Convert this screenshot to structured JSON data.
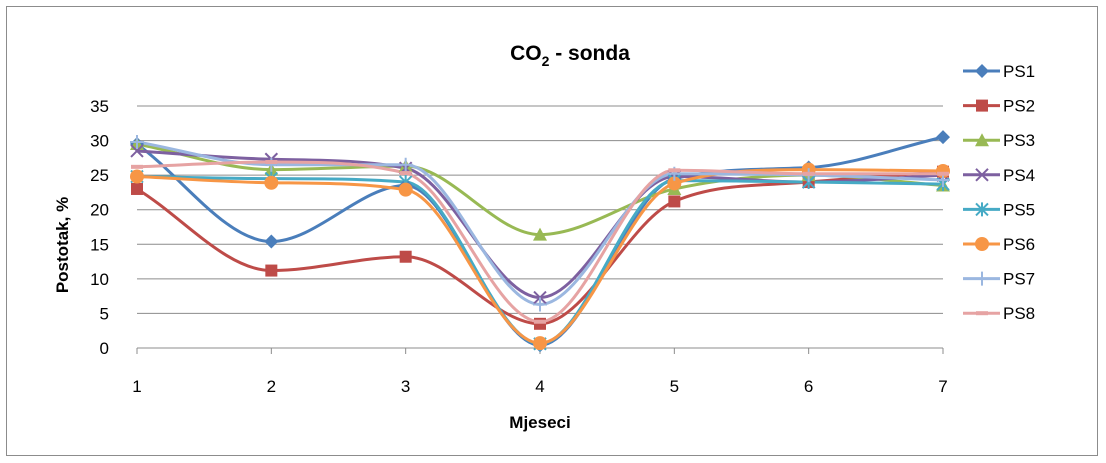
{
  "chart_data": {
    "type": "line",
    "title": "CO",
    "title_subscript": "2",
    "title_suffix": " - sonda",
    "xlabel": "Mjeseci",
    "ylabel": "Postotak, %",
    "x": [
      1,
      2,
      3,
      4,
      5,
      6,
      7
    ],
    "x_tick_labels": [
      "1",
      "2",
      "3",
      "4",
      "5",
      "6",
      "7"
    ],
    "ylim": [
      0,
      35
    ],
    "y_ticks": [
      0,
      5,
      10,
      15,
      20,
      25,
      30,
      35
    ],
    "grid": true,
    "smooth": true,
    "legend_position": "right",
    "series": [
      {
        "name": "PS1",
        "color": "#4a7ebb",
        "marker": "diamond",
        "values": [
          29.5,
          15.4,
          23.5,
          0.4,
          24.5,
          26.1,
          30.5
        ]
      },
      {
        "name": "PS2",
        "color": "#be4b48",
        "marker": "square",
        "values": [
          23.0,
          11.2,
          13.2,
          3.5,
          21.2,
          24.0,
          25.5
        ]
      },
      {
        "name": "PS3",
        "color": "#98b954",
        "marker": "triangle",
        "values": [
          29.5,
          25.8,
          26.3,
          16.4,
          23.0,
          25.0,
          23.5
        ]
      },
      {
        "name": "PS4",
        "color": "#7d60a0",
        "marker": "x",
        "values": [
          28.5,
          27.3,
          26.0,
          7.3,
          24.8,
          24.0,
          25.0
        ]
      },
      {
        "name": "PS5",
        "color": "#46aac5",
        "marker": "star",
        "values": [
          24.8,
          24.5,
          24.0,
          0.6,
          24.2,
          24.0,
          23.7
        ]
      },
      {
        "name": "PS6",
        "color": "#f79646",
        "marker": "circle",
        "values": [
          24.8,
          23.9,
          22.9,
          0.7,
          23.8,
          25.8,
          25.6
        ]
      },
      {
        "name": "PS7",
        "color": "#9bb7e0",
        "marker": "plus",
        "values": [
          29.8,
          26.5,
          26.5,
          6.3,
          25.2,
          25.0,
          24.3
        ]
      },
      {
        "name": "PS8",
        "color": "#e6a3a3",
        "marker": "dash",
        "values": [
          26.2,
          26.9,
          25.3,
          3.8,
          25.7,
          25.2,
          25.2
        ]
      }
    ]
  }
}
